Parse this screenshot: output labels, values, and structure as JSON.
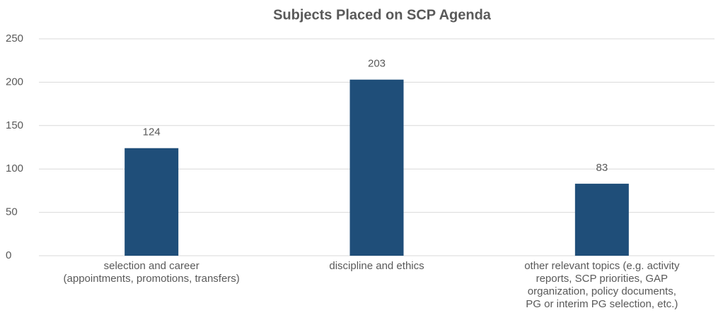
{
  "chart_data": {
    "type": "bar",
    "title": "Subjects Placed on SCP Agenda",
    "categories": [
      "selection and career\n(appointments, promotions, transfers)",
      "discipline and ethics",
      "other relevant topics (e.g. activity\nreports, SCP priorities, GAP\norganization, policy documents,\nPG or interim PG selection, etc.)"
    ],
    "values": [
      124,
      203,
      83
    ],
    "color": "#1f4e79",
    "ylim": [
      0,
      250
    ],
    "yticks": [
      0,
      50,
      100,
      150,
      200,
      250
    ],
    "grid": true
  }
}
